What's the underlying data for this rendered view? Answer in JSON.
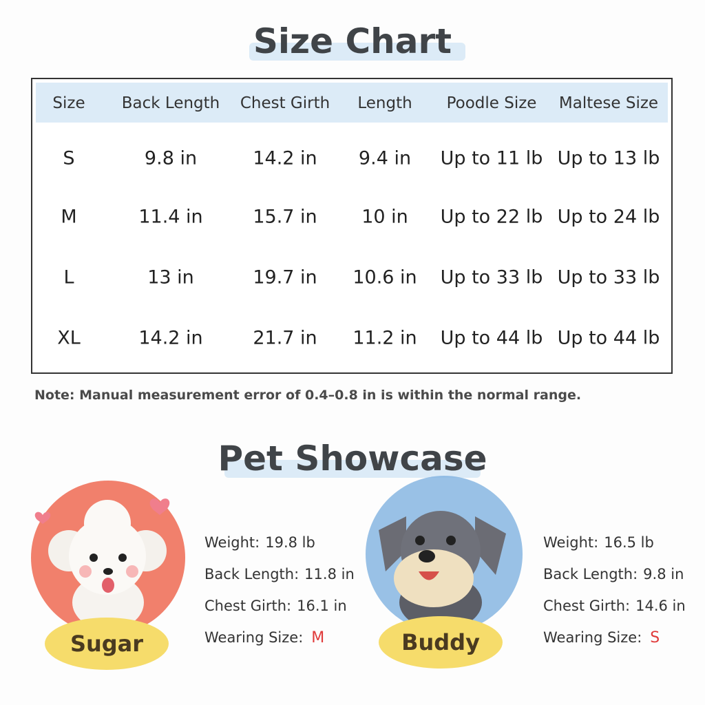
{
  "size_chart": {
    "title": "Size Chart",
    "columns": [
      "Size",
      "Back Length",
      "Chest Girth",
      "Length",
      "Poodle Size",
      "Maltese Size"
    ],
    "rows": [
      [
        "S",
        "9.8 in",
        "14.2 in",
        "9.4 in",
        "Up to 11 lb",
        "Up to 13 lb"
      ],
      [
        "M",
        "11.4 in",
        "15.7 in",
        "10 in",
        "Up to 22 lb",
        "Up to 24 lb"
      ],
      [
        "L",
        "13 in",
        "19.7 in",
        "10.6 in",
        "Up to 33 lb",
        "Up to 33 lb"
      ],
      [
        "XL",
        "14.2 in",
        "21.7 in",
        "11.2 in",
        "Up to 44 lb",
        "Up to 44 lb"
      ]
    ],
    "note": "Note: Manual measurement error of 0.4–0.8 in is within the normal range."
  },
  "showcase": {
    "title": "Pet Showcase",
    "pets": [
      {
        "name": "Sugar",
        "details": [
          {
            "label": "Weight:",
            "value": "19.8 lb"
          },
          {
            "label": "Back Length:",
            "value": "11.8 in"
          },
          {
            "label": "Chest Girth:",
            "value": "16.1 in"
          }
        ],
        "wearing": {
          "label": "Wearing Size:",
          "value": "M"
        }
      },
      {
        "name": "Buddy",
        "details": [
          {
            "label": "Weight:",
            "value": "16.5 lb"
          },
          {
            "label": "Back Length:",
            "value": "9.8 in"
          },
          {
            "label": "Chest Girth:",
            "value": "14.6 in"
          }
        ],
        "wearing": {
          "label": "Wearing Size:",
          "value": "S"
        }
      }
    ]
  }
}
